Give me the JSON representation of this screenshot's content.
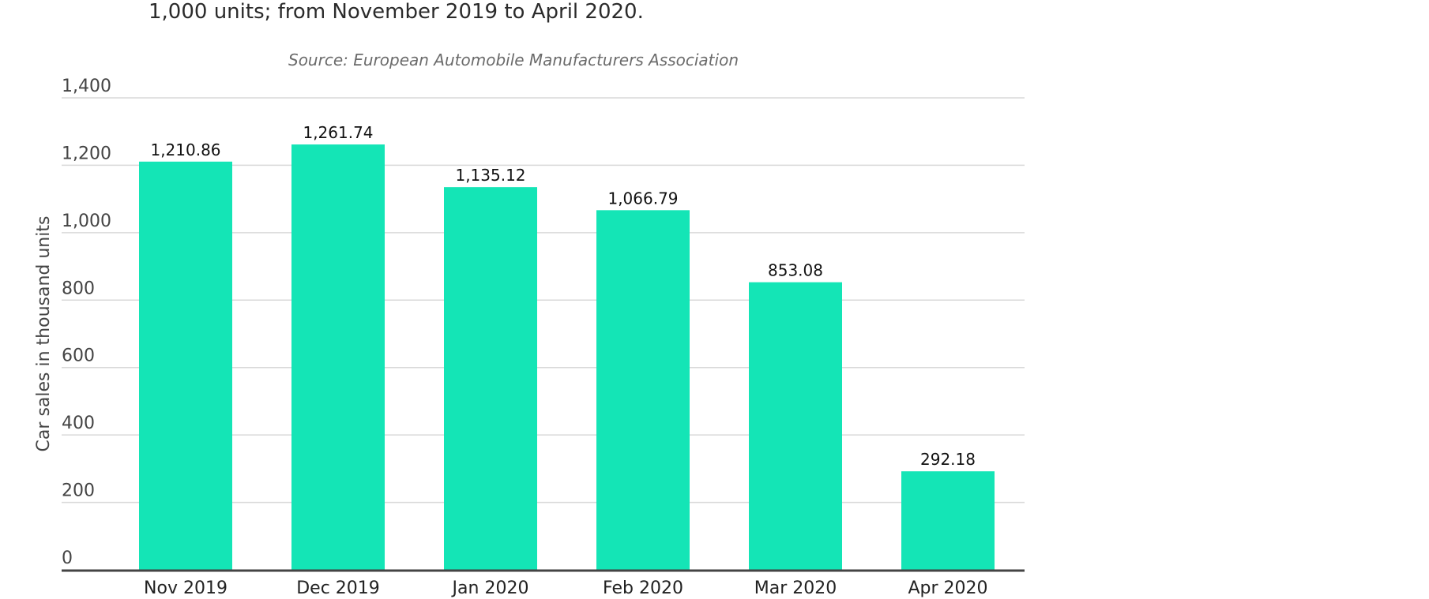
{
  "header": {
    "title_fragment": "1,000 units; from November 2019 to April 2020.",
    "source": "Source: European Automobile Manufacturers Association"
  },
  "chart_data": {
    "type": "bar",
    "categories": [
      "Nov 2019",
      "Dec 2019",
      "Jan 2020",
      "Feb 2020",
      "Mar 2020",
      "Apr 2020"
    ],
    "values": [
      1210.86,
      1261.74,
      1135.12,
      1066.79,
      853.08,
      292.18
    ],
    "value_labels": [
      "1,210.86",
      "1,261.74",
      "1,135.12",
      "1,066.79",
      "853.08",
      "292.18"
    ],
    "ylabel": "Car sales in thousand units",
    "xlabel": "",
    "ylim": [
      0,
      1400
    ],
    "yticks": [
      0,
      200,
      400,
      600,
      800,
      1000,
      1200,
      1400
    ],
    "ytick_labels": [
      "0",
      "200",
      "400",
      "600",
      "800",
      "1,000",
      "1,200",
      "1,400"
    ],
    "grid": true,
    "bar_color": "#14e5b6",
    "baseline_color": "#444444",
    "grid_color": "#d9d9d9"
  }
}
